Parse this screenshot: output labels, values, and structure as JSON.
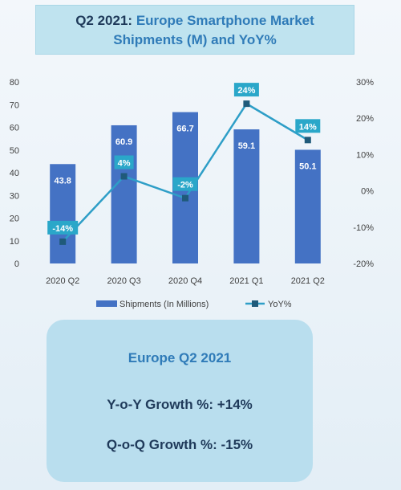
{
  "title": {
    "prefix": "Q2 2021:",
    "line1": "Europe Smartphone Market",
    "line2": "Shipments (M) and YoY%"
  },
  "chart_data": {
    "type": "bar",
    "categories": [
      "2020 Q2",
      "2020 Q3",
      "2020 Q4",
      "2021 Q1",
      "2021 Q2"
    ],
    "series": [
      {
        "name": "Shipments (In Millions)",
        "type": "bar",
        "axis": "left",
        "values": [
          43.8,
          60.9,
          66.7,
          59.1,
          50.1
        ],
        "labels": [
          "43.8",
          "60.9",
          "66.7",
          "59.1",
          "50.1"
        ],
        "color": "#4472c4"
      },
      {
        "name": "YoY%",
        "type": "line",
        "axis": "right",
        "values": [
          -14,
          4,
          -2,
          24,
          14
        ],
        "labels": [
          "-14%",
          "4%",
          "-2%",
          "24%",
          "14%"
        ],
        "color": "#2e9ec7"
      }
    ],
    "ylim": [
      0,
      80
    ],
    "yticks": [
      "0",
      "10",
      "20",
      "30",
      "40",
      "50",
      "60",
      "70",
      "80"
    ],
    "y2lim": [
      -20,
      30
    ],
    "y2ticks": [
      "-20%",
      "-10%",
      "0%",
      "10%",
      "20%",
      "30%"
    ],
    "legend_position": "bottom",
    "grid": false
  },
  "summary": {
    "heading": "Europe Q2 2021",
    "yoy": "Y-o-Y Growth %: +14%",
    "qoq": "Q-o-Q Growth %: -15%"
  },
  "colors": {
    "bar": "#4472c4",
    "line": "#2e9ec7",
    "marker": "#1f5a7a",
    "title_accent": "#2f7bb8"
  }
}
